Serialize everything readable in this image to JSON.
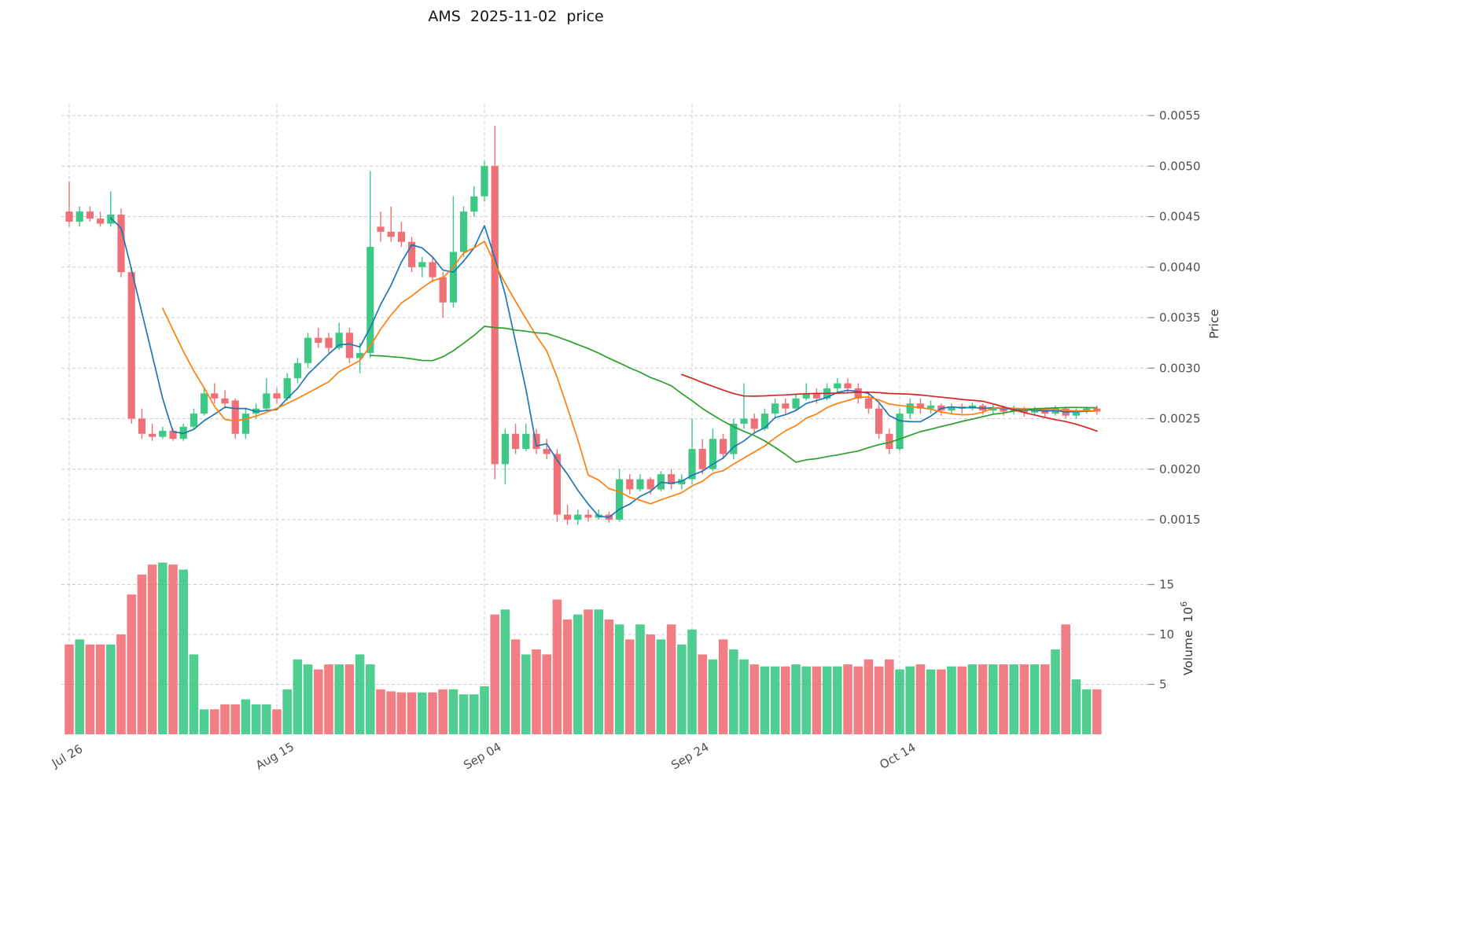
{
  "title": "AMS  2025-11-02  price",
  "axes": {
    "price_label": "Price",
    "volume_label": "Volume  10",
    "volume_exponent": "6",
    "price_ticks": [
      "0.0015",
      "0.0020",
      "0.0025",
      "0.0030",
      "0.0035",
      "0.0040",
      "0.0045",
      "0.0050",
      "0.0055"
    ],
    "volume_ticks": [
      5,
      10,
      15
    ],
    "x_ticks": [
      {
        "label": "Jul 26",
        "index": 0
      },
      {
        "label": "Aug 15",
        "index": 20
      },
      {
        "label": "Sep 04",
        "index": 40
      },
      {
        "label": "Sep 24",
        "index": 60
      },
      {
        "label": "Oct 14",
        "index": 80
      }
    ]
  },
  "colors": {
    "up": "#3dc985",
    "down": "#f07077",
    "grid": "#cdcdcd",
    "text": "#4f4f4f"
  },
  "chart_data": {
    "type": "candlestick+volume",
    "symbol": "AMS",
    "as_of_date": "2025-11-02",
    "start_tick": "Jul 26",
    "price_unit": 0.0001,
    "volume_unit": 1000000,
    "ylim_price": [
      0.0013,
      0.0057
    ],
    "ylim_volume": [
      0,
      18
    ],
    "grid": "dashed",
    "candle_format": [
      "open",
      "high",
      "low",
      "close",
      "volume"
    ],
    "moving_averages": [
      {
        "name": "MA5",
        "window": 5,
        "color": "#1f77b4"
      },
      {
        "name": "MA10",
        "window": 10,
        "color": "#ff7f0e"
      },
      {
        "name": "MA30",
        "window": 30,
        "color": "#2ca02c"
      },
      {
        "name": "MA60",
        "window": 60,
        "color": "#d62728"
      }
    ],
    "candles": [
      [
        45.5,
        48.5,
        44.0,
        44.5,
        9.0
      ],
      [
        44.5,
        46.0,
        44.0,
        45.5,
        9.5
      ],
      [
        45.5,
        46.0,
        44.5,
        44.8,
        9.0
      ],
      [
        44.8,
        45.5,
        44.0,
        44.3,
        9.0
      ],
      [
        44.3,
        47.5,
        44.0,
        45.2,
        9.0
      ],
      [
        45.2,
        45.8,
        39.0,
        39.5,
        10.0
      ],
      [
        39.5,
        40.0,
        24.5,
        25.0,
        14.0
      ],
      [
        25.0,
        26.0,
        23.0,
        23.5,
        16.0
      ],
      [
        23.5,
        24.5,
        22.8,
        23.2,
        17.0
      ],
      [
        23.2,
        24.2,
        23.0,
        23.8,
        17.2
      ],
      [
        23.8,
        24.0,
        22.8,
        23.0,
        17.0
      ],
      [
        23.0,
        24.5,
        22.8,
        24.2,
        16.5
      ],
      [
        24.2,
        26.0,
        24.0,
        25.5,
        8.0
      ],
      [
        25.5,
        28.0,
        25.3,
        27.5,
        2.5
      ],
      [
        27.5,
        28.5,
        26.5,
        27.0,
        2.5
      ],
      [
        27.0,
        27.8,
        26.0,
        26.5,
        3.0
      ],
      [
        26.8,
        27.0,
        23.0,
        23.5,
        3.0
      ],
      [
        23.5,
        26.0,
        23.0,
        25.5,
        3.5
      ],
      [
        25.5,
        26.5,
        25.0,
        26.0,
        3.0
      ],
      [
        26.0,
        29.0,
        25.8,
        27.5,
        3.0
      ],
      [
        27.5,
        28.0,
        26.5,
        27.0,
        2.5
      ],
      [
        27.0,
        29.5,
        26.8,
        29.0,
        4.5
      ],
      [
        29.0,
        31.0,
        28.5,
        30.5,
        7.5
      ],
      [
        30.5,
        33.5,
        30.0,
        33.0,
        7.0
      ],
      [
        33.0,
        34.0,
        32.0,
        32.5,
        6.5
      ],
      [
        33.0,
        33.5,
        31.5,
        32.0,
        7.0
      ],
      [
        32.0,
        34.5,
        31.8,
        33.5,
        7.0
      ],
      [
        33.5,
        34.0,
        30.5,
        31.0,
        7.0
      ],
      [
        31.0,
        32.5,
        29.5,
        31.5,
        8.0
      ],
      [
        31.5,
        49.5,
        31.0,
        42.0,
        7.0
      ],
      [
        44.0,
        45.5,
        42.5,
        43.5,
        4.5
      ],
      [
        43.5,
        46.0,
        42.5,
        43.0,
        4.3
      ],
      [
        43.5,
        44.5,
        42.0,
        42.5,
        4.2
      ],
      [
        42.5,
        43.0,
        39.5,
        40.0,
        4.2
      ],
      [
        40.0,
        41.0,
        39.0,
        40.5,
        4.2
      ],
      [
        40.5,
        41.0,
        38.5,
        39.0,
        4.2
      ],
      [
        39.0,
        39.5,
        35.0,
        36.5,
        4.5
      ],
      [
        36.5,
        47.0,
        36.0,
        41.5,
        4.5
      ],
      [
        41.5,
        46.0,
        41.0,
        45.5,
        4.0
      ],
      [
        45.5,
        48.0,
        45.0,
        47.0,
        4.0
      ],
      [
        47.0,
        50.5,
        46.5,
        50.0,
        4.8
      ],
      [
        50.0,
        54.0,
        19.0,
        20.5,
        12.0
      ],
      [
        20.5,
        24.0,
        18.5,
        23.5,
        12.5
      ],
      [
        23.5,
        24.5,
        21.5,
        22.0,
        9.5
      ],
      [
        22.0,
        24.5,
        21.8,
        23.5,
        8.0
      ],
      [
        23.5,
        24.0,
        21.5,
        22.0,
        8.5
      ],
      [
        22.0,
        23.0,
        21.0,
        21.5,
        8.0
      ],
      [
        21.5,
        22.0,
        14.8,
        15.5,
        13.5
      ],
      [
        15.5,
        16.5,
        14.5,
        15.0,
        11.5
      ],
      [
        15.0,
        16.0,
        14.5,
        15.5,
        12.0
      ],
      [
        15.5,
        16.0,
        14.8,
        15.2,
        12.5
      ],
      [
        15.2,
        16.0,
        15.0,
        15.5,
        12.5
      ],
      [
        15.5,
        15.8,
        14.7,
        15.0,
        11.5
      ],
      [
        15.0,
        20.0,
        14.8,
        19.0,
        11.0
      ],
      [
        19.0,
        19.5,
        17.5,
        18.0,
        9.5
      ],
      [
        18.0,
        19.5,
        17.8,
        19.0,
        11.0
      ],
      [
        19.0,
        19.2,
        17.5,
        18.0,
        10.0
      ],
      [
        18.0,
        19.8,
        17.8,
        19.5,
        9.5
      ],
      [
        19.5,
        20.0,
        18.0,
        18.5,
        11.0
      ],
      [
        18.5,
        19.5,
        18.0,
        19.0,
        9.0
      ],
      [
        19.0,
        25.0,
        18.5,
        22.0,
        10.5
      ],
      [
        22.0,
        23.0,
        19.5,
        20.0,
        8.0
      ],
      [
        20.0,
        24.0,
        19.8,
        23.0,
        7.5
      ],
      [
        23.0,
        23.5,
        21.0,
        21.5,
        9.5
      ],
      [
        21.5,
        25.0,
        21.0,
        24.5,
        8.5
      ],
      [
        24.5,
        28.5,
        24.0,
        25.0,
        7.5
      ],
      [
        25.0,
        25.5,
        23.5,
        24.0,
        7.0
      ],
      [
        24.0,
        26.0,
        23.8,
        25.5,
        6.8
      ],
      [
        25.5,
        27.0,
        25.0,
        26.5,
        6.8
      ],
      [
        26.5,
        27.0,
        25.5,
        26.0,
        6.8
      ],
      [
        26.0,
        27.5,
        25.8,
        27.0,
        7.0
      ],
      [
        27.0,
        28.5,
        26.8,
        27.5,
        6.8
      ],
      [
        27.5,
        28.0,
        26.5,
        27.0,
        6.8
      ],
      [
        27.0,
        28.5,
        26.8,
        28.0,
        6.8
      ],
      [
        28.0,
        29.0,
        27.5,
        28.5,
        6.8
      ],
      [
        28.5,
        29.0,
        27.5,
        28.0,
        7.0
      ],
      [
        28.0,
        28.5,
        26.5,
        27.0,
        6.8
      ],
      [
        27.0,
        27.5,
        25.5,
        26.0,
        7.5
      ],
      [
        26.0,
        26.5,
        23.0,
        23.5,
        6.8
      ],
      [
        23.5,
        24.0,
        21.5,
        22.0,
        7.5
      ],
      [
        22.0,
        26.0,
        21.8,
        25.5,
        6.5
      ],
      [
        25.5,
        27.0,
        25.0,
        26.5,
        6.8
      ],
      [
        26.5,
        27.0,
        25.5,
        26.0,
        7.0
      ],
      [
        26.0,
        26.8,
        25.5,
        26.3,
        6.5
      ],
      [
        26.3,
        26.5,
        25.3,
        25.8,
        6.5
      ],
      [
        25.8,
        26.5,
        25.5,
        26.2,
        6.8
      ],
      [
        26.2,
        26.5,
        25.5,
        26.0,
        6.8
      ],
      [
        26.0,
        26.6,
        25.8,
        26.3,
        7.0
      ],
      [
        26.3,
        26.5,
        25.4,
        25.8,
        7.0
      ],
      [
        25.8,
        26.4,
        25.5,
        26.1,
        7.0
      ],
      [
        26.1,
        26.3,
        25.3,
        25.7,
        7.0
      ],
      [
        25.7,
        26.3,
        25.4,
        26.0,
        7.0
      ],
      [
        26.0,
        26.2,
        25.2,
        25.6,
        7.0
      ],
      [
        25.6,
        26.2,
        25.3,
        25.9,
        7.0
      ],
      [
        25.9,
        26.1,
        25.2,
        25.5,
        7.0
      ],
      [
        25.5,
        26.3,
        25.3,
        26.0,
        8.5
      ],
      [
        26.0,
        26.2,
        25.0,
        25.3,
        11.0
      ],
      [
        25.3,
        26.0,
        25.0,
        25.8,
        5.5
      ],
      [
        25.8,
        26.2,
        25.5,
        26.0,
        4.5
      ],
      [
        26.0,
        26.3,
        25.4,
        25.7,
        4.5
      ]
    ]
  }
}
